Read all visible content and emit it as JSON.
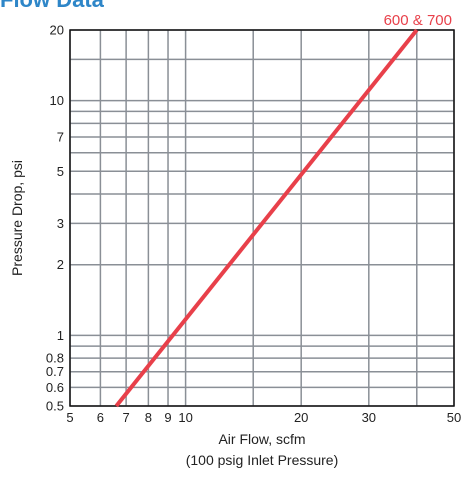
{
  "page_title": "Flow Data",
  "chart_data": {
    "type": "line",
    "title": "Flow Data",
    "xlabel": "Air Flow, scfm",
    "xlabel_sub": "(100 psig Inlet Pressure)",
    "ylabel": "Pressure Drop, psi",
    "xscale": "log",
    "yscale": "log",
    "xlim": [
      5,
      50
    ],
    "ylim": [
      0.5,
      20
    ],
    "x_ticks": [
      5,
      6,
      7,
      8,
      9,
      10,
      20,
      30,
      50
    ],
    "x_tick_labels": [
      "5",
      "6",
      "7",
      "8",
      "9",
      "10",
      "20",
      "30",
      "50"
    ],
    "y_ticks": [
      0.5,
      0.6,
      0.7,
      0.8,
      1,
      2,
      3,
      5,
      7,
      10,
      20
    ],
    "y_tick_labels": [
      "0.5",
      "0.6",
      "0.7",
      "0.8",
      "1",
      "2",
      "3",
      "5",
      "7",
      "10",
      "20"
    ],
    "x_grid": [
      5,
      6,
      7,
      8,
      9,
      10,
      15,
      20,
      30,
      40,
      50
    ],
    "y_grid": [
      0.5,
      0.6,
      0.7,
      0.8,
      0.9,
      1,
      2,
      3,
      4,
      5,
      6,
      7,
      8,
      9,
      10,
      15,
      20
    ],
    "grid": true,
    "legend": "none",
    "series": [
      {
        "name": "600 & 700",
        "color": "#e8404a",
        "x": [
          6.6,
          40
        ],
        "y": [
          0.5,
          20
        ]
      }
    ]
  }
}
